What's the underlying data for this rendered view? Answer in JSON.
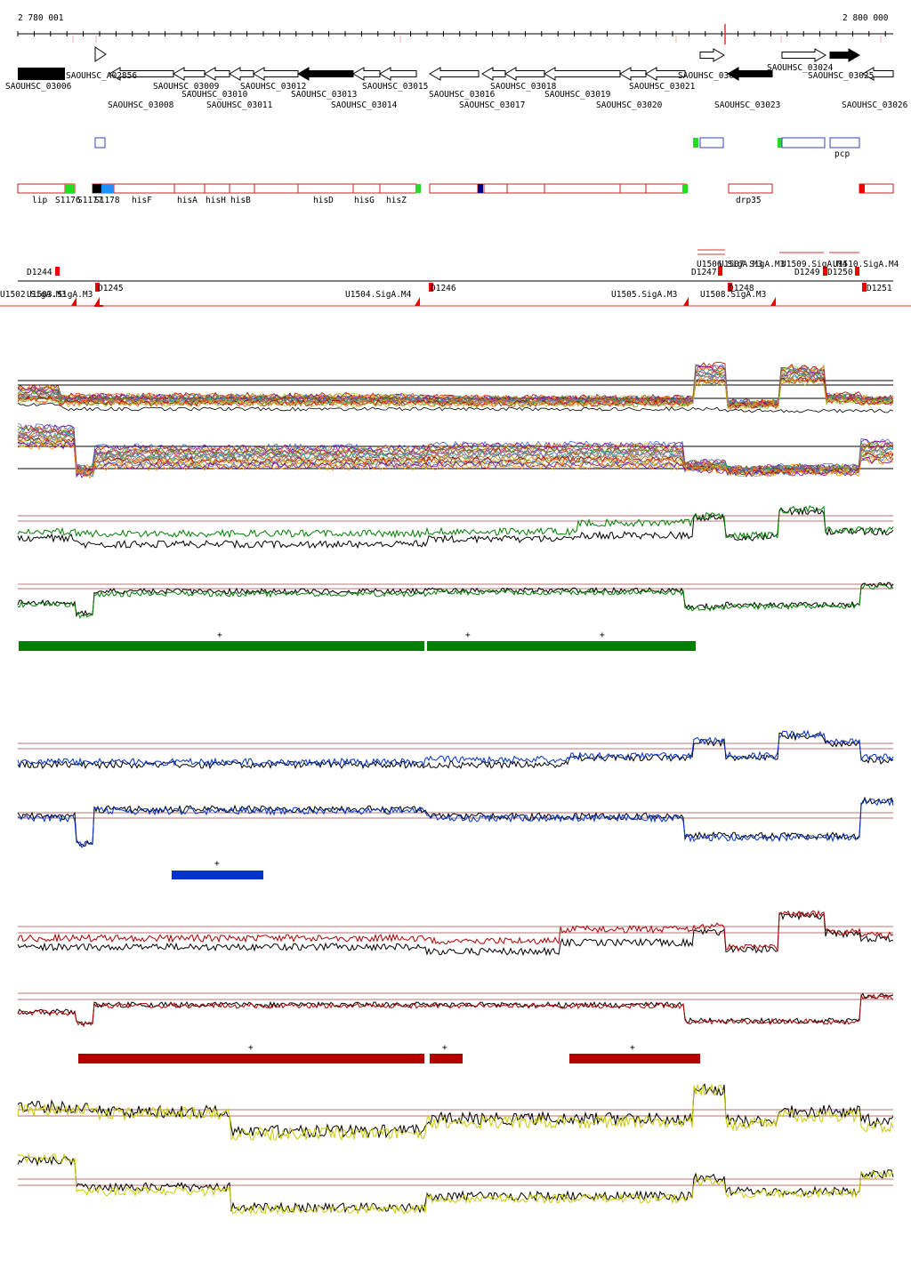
{
  "ruler": {
    "start_label": "2 780 001",
    "end_label": "2 800 000"
  },
  "genes_top": [
    {
      "name": "SAOUHSC_03006",
      "color": "#000000"
    },
    {
      "name": "SAOUHSC_A02856",
      "color": "#ffffff"
    },
    {
      "name": "SAOUHSC_03008",
      "color": "#ffffff"
    },
    {
      "name": "SAOUHSC_03009",
      "color": "#ffffff"
    },
    {
      "name": "SAOUHSC_03010",
      "color": "#ffffff"
    },
    {
      "name": "SAOUHSC_03011",
      "color": "#ffffff"
    },
    {
      "name": "SAOUHSC_03012",
      "color": "#ffffff"
    },
    {
      "name": "SAOUHSC_03013",
      "color": "#000000"
    },
    {
      "name": "SAOUHSC_03014",
      "color": "#ffffff"
    },
    {
      "name": "SAOUHSC_03015",
      "color": "#ffffff"
    },
    {
      "name": "SAOUHSC_03016",
      "color": "#ffffff"
    },
    {
      "name": "SAOUHSC_03017",
      "color": "#ffffff"
    },
    {
      "name": "SAOUHSC_03018",
      "color": "#ffffff"
    },
    {
      "name": "SAOUHSC_03019",
      "color": "#ffffff"
    },
    {
      "name": "SAOUHSC_03020",
      "color": "#ffffff"
    },
    {
      "name": "SAOUHSC_03021",
      "color": "#ffffff"
    },
    {
      "name": "SAOUHSC_030",
      "color": "#ffffff"
    },
    {
      "name": "SAOUHSC_03023",
      "color": "#000000"
    },
    {
      "name": "SAOUHSC_03024",
      "color": "#ffffff"
    },
    {
      "name": "SAOUHSC_03025",
      "color": "#000000"
    },
    {
      "name": "SAOUHSC_03026",
      "color": "#ffffff"
    }
  ],
  "blue_features": [
    {
      "name": "pcp"
    }
  ],
  "red_genes": [
    {
      "name": "lip"
    },
    {
      "name": "S1176"
    },
    {
      "name": "S1177"
    },
    {
      "name": "S1178"
    },
    {
      "name": "hisF"
    },
    {
      "name": "hisA"
    },
    {
      "name": "hisH"
    },
    {
      "name": "hisB"
    },
    {
      "name": "hisD"
    },
    {
      "name": "hisG"
    },
    {
      "name": "hisZ"
    },
    {
      "name": "drp35"
    }
  ],
  "transcripts": [
    {
      "name": "D1244"
    },
    {
      "name": "D1245"
    },
    {
      "name": "D1246"
    },
    {
      "name": "D1247"
    },
    {
      "name": "D1248"
    },
    {
      "name": "D1249"
    },
    {
      "name": "D1250"
    },
    {
      "name": "D1251"
    },
    {
      "name": "U1502.SigA.M3"
    },
    {
      "name": "U1503.SigA.M3"
    },
    {
      "name": "U1504.SigA.M4"
    },
    {
      "name": "U1505.SigA.M3"
    },
    {
      "name": "U1506.SigA.M3"
    },
    {
      "name": "U1507.SigA.M3"
    },
    {
      "name": "U1508.SigA.M3"
    },
    {
      "name": "U1509.SigA.M4"
    },
    {
      "name": "U1510.SigA.M4"
    }
  ],
  "tracks": {
    "heatmap_colors": [
      "#8b0000",
      "#ff4500",
      "#9acd32",
      "#4169e1",
      "#800080",
      "#ff8c00",
      "#2e8b57",
      "#c71585",
      "#8b4513",
      "#808000",
      "#6a5acd",
      "#20b2aa",
      "#cd5c5c",
      "#696969",
      "#daa520"
    ],
    "green": "#008000",
    "blue": "#0033cc",
    "red": "#b30000",
    "yellow": "#cccc00",
    "threshold": "#aa4444"
  },
  "plus_marker": "+"
}
